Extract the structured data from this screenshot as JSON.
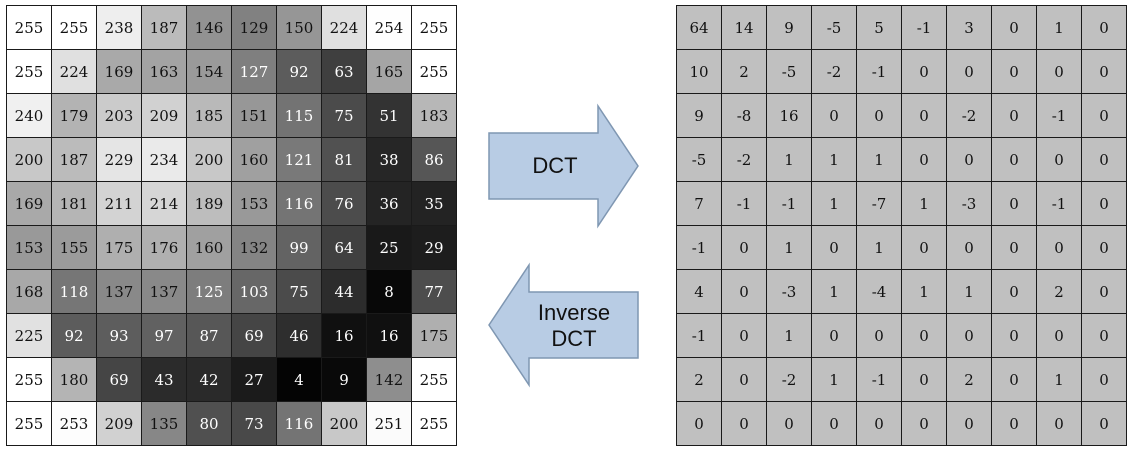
{
  "input_matrix": [
    [
      255,
      255,
      238,
      187,
      146,
      129,
      150,
      224,
      254,
      255
    ],
    [
      255,
      224,
      169,
      163,
      154,
      127,
      92,
      63,
      165,
      255
    ],
    [
      240,
      179,
      203,
      209,
      185,
      151,
      115,
      75,
      51,
      183
    ],
    [
      200,
      187,
      229,
      234,
      200,
      160,
      121,
      81,
      38,
      86
    ],
    [
      169,
      181,
      211,
      214,
      189,
      153,
      116,
      76,
      36,
      35
    ],
    [
      153,
      155,
      175,
      176,
      160,
      132,
      99,
      64,
      25,
      29
    ],
    [
      168,
      118,
      137,
      137,
      125,
      103,
      75,
      44,
      8,
      77
    ],
    [
      225,
      92,
      93,
      97,
      87,
      69,
      46,
      16,
      16,
      175
    ],
    [
      255,
      180,
      69,
      43,
      42,
      27,
      4,
      9,
      142,
      255
    ],
    [
      255,
      253,
      209,
      135,
      80,
      73,
      116,
      200,
      251,
      255
    ]
  ],
  "dct_matrix": [
    [
      64,
      14,
      9,
      -5,
      5,
      -1,
      3,
      0,
      1,
      0
    ],
    [
      10,
      2,
      -5,
      -2,
      -1,
      0,
      0,
      0,
      0,
      0
    ],
    [
      9,
      -8,
      16,
      0,
      0,
      0,
      -2,
      0,
      -1,
      0
    ],
    [
      -5,
      -2,
      1,
      1,
      1,
      0,
      0,
      0,
      0,
      0
    ],
    [
      7,
      -1,
      -1,
      1,
      -7,
      1,
      -3,
      0,
      -1,
      0
    ],
    [
      -1,
      0,
      1,
      0,
      1,
      0,
      0,
      0,
      0,
      0
    ],
    [
      4,
      0,
      -3,
      1,
      -4,
      1,
      1,
      0,
      2,
      0
    ],
    [
      -1,
      0,
      1,
      0,
      0,
      0,
      0,
      0,
      0,
      0
    ],
    [
      2,
      0,
      -2,
      1,
      -1,
      0,
      2,
      0,
      1,
      0
    ],
    [
      0,
      0,
      0,
      0,
      0,
      0,
      0,
      0,
      0,
      0
    ]
  ],
  "arrows": {
    "forward_label": "DCT",
    "inverse_label_line1": "Inverse",
    "inverse_label_line2": "DCT",
    "fill_color": "#b8cce4",
    "stroke_color": "#7f97b2"
  }
}
